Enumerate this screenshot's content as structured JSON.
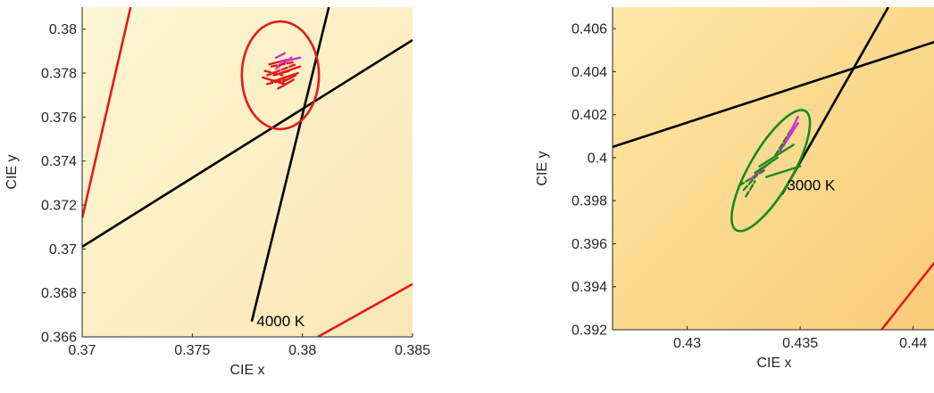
{
  "chart_data": [
    {
      "type": "line",
      "title": "",
      "xlabel": "CIE x",
      "ylabel": "CIE y",
      "xlim": [
        0.37,
        0.385
      ],
      "ylim": [
        0.366,
        0.381
      ],
      "xticks": [
        "0.37",
        "0.375",
        "0.38",
        "0.385"
      ],
      "xtick_values": [
        0.37,
        0.375,
        0.38,
        0.385
      ],
      "yticks": [
        "0.366",
        "0.368",
        "0.37",
        "0.372",
        "0.374",
        "0.376",
        "0.378",
        "0.38"
      ],
      "ytick_values": [
        0.366,
        0.368,
        0.37,
        0.372,
        0.374,
        0.376,
        0.378,
        0.38
      ],
      "grid": false,
      "background_colors": [
        "#fdf7d4",
        "#fbe6b6"
      ],
      "lines": [
        {
          "color": "#e41a1c",
          "points": [
            [
              0.37,
              0.3714
            ],
            [
              0.3722,
              0.381
            ]
          ]
        },
        {
          "color": "#e41a1c",
          "points": [
            [
              0.3807,
              0.366
            ],
            [
              0.385,
              0.3684
            ]
          ]
        },
        {
          "color": "#000000",
          "points": [
            [
              0.37,
              0.3701
            ],
            [
              0.385,
              0.3795
            ]
          ]
        },
        {
          "color": "#000000",
          "points": [
            [
              0.3777,
              0.3667
            ],
            [
              0.3812,
              0.381
            ]
          ]
        }
      ],
      "ellipse": {
        "cx": 0.379,
        "cy": 0.3779,
        "rx": 0.00175,
        "ry": 0.00245,
        "color": "#e41a1c"
      },
      "cluster": {
        "center": [
          0.3791,
          0.3781
        ],
        "colors": [
          "#e41a1c",
          "#e41a1c",
          "#e41a1c",
          "#cc33cc"
        ],
        "segments": [
          [
            0.3784,
            0.3779,
            0.3797,
            0.3784
          ],
          [
            0.3786,
            0.3776,
            0.3798,
            0.378
          ],
          [
            0.3782,
            0.3778,
            0.3792,
            0.3775
          ],
          [
            0.3788,
            0.3782,
            0.3795,
            0.3787
          ],
          [
            0.3785,
            0.3784,
            0.3793,
            0.3786
          ],
          [
            0.3789,
            0.3773,
            0.3796,
            0.3777
          ],
          [
            0.3783,
            0.3781,
            0.3791,
            0.3779
          ],
          [
            0.379,
            0.3785,
            0.3799,
            0.3787
          ],
          [
            0.3787,
            0.3779,
            0.3794,
            0.3781
          ],
          [
            0.3786,
            0.3783,
            0.3796,
            0.3785
          ],
          [
            0.3791,
            0.3776,
            0.3797,
            0.3779
          ],
          [
            0.3788,
            0.3787,
            0.3792,
            0.3789
          ],
          [
            0.3784,
            0.3775,
            0.3792,
            0.3777
          ],
          [
            0.379,
            0.378,
            0.3799,
            0.3783
          ]
        ]
      },
      "annotations": [
        {
          "text": "4000 K",
          "x": 0.3778,
          "y": 0.3664
        }
      ]
    },
    {
      "type": "line",
      "title": "",
      "xlabel": "CIE x",
      "ylabel": "CIE y",
      "xlim": [
        0.4267,
        0.441
      ],
      "ylim": [
        0.392,
        0.407
      ],
      "xticks": [
        "0.43",
        "0.435",
        "0.44"
      ],
      "xtick_values": [
        0.43,
        0.435,
        0.44
      ],
      "yticks": [
        "0.392",
        "0.394",
        "0.396",
        "0.398",
        "0.4",
        "0.402",
        "0.404",
        "0.406"
      ],
      "ytick_values": [
        0.392,
        0.394,
        0.396,
        0.398,
        0.4,
        0.402,
        0.404,
        0.406
      ],
      "grid": false,
      "background_colors": [
        "#fde7a6",
        "#f8cc78"
      ],
      "lines": [
        {
          "color": "#000000",
          "points": [
            [
              0.4267,
              0.4005
            ],
            [
              0.441,
              0.4054
            ]
          ]
        },
        {
          "color": "#000000",
          "points": [
            [
              0.4342,
              0.3983
            ],
            [
              0.4389,
              0.407
            ]
          ]
        },
        {
          "color": "#e41a1c",
          "points": [
            [
              0.4386,
              0.392
            ],
            [
              0.441,
              0.3952
            ]
          ]
        }
      ],
      "ellipse": {
        "cx": 0.4337,
        "cy": 0.3994,
        "rx": 0.00095,
        "ry": 0.0032,
        "rotation_deg": 30,
        "color": "#1a8a1a"
      },
      "cluster": {
        "center": [
          0.4337,
          0.3996
        ],
        "colors": [
          "#1a8a1a",
          "#1a8a1a",
          "#cc33cc"
        ],
        "segments": [
          [
            0.4323,
            0.3987,
            0.4334,
            0.3994
          ],
          [
            0.4332,
            0.3996,
            0.4347,
            0.4006
          ],
          [
            0.4341,
            0.4003,
            0.4349,
            0.4016
          ],
          [
            0.4326,
            0.3982,
            0.433,
            0.3989
          ],
          [
            0.4335,
            0.3991,
            0.435,
            0.3996
          ],
          [
            0.4328,
            0.399,
            0.4337,
            0.3998
          ],
          [
            0.4339,
            0.4001,
            0.4346,
            0.4013
          ],
          [
            0.433,
            0.3993,
            0.434,
            0.4
          ],
          [
            0.4343,
            0.4006,
            0.4349,
            0.4019
          ],
          [
            0.4325,
            0.3985,
            0.4331,
            0.3992
          ]
        ]
      },
      "annotations": [
        {
          "text": "3000 K",
          "x": 0.4343,
          "y": 0.3984
        }
      ]
    }
  ]
}
